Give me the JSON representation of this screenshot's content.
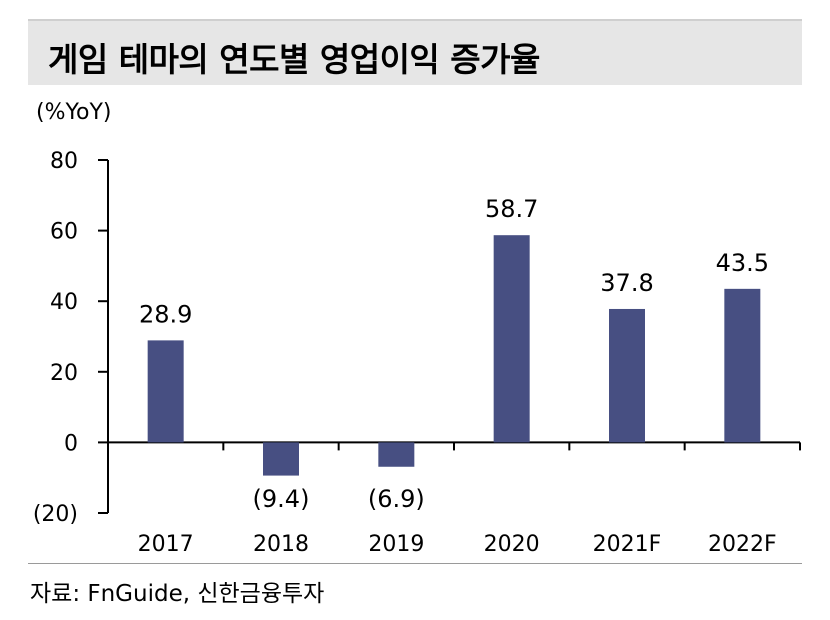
{
  "header": {
    "title": "게임 테마의 연도별 영업이익 증가율"
  },
  "unit_label": "(%YoY)",
  "source": "자료: FnGuide, 신한금융투자",
  "colors": {
    "bar": "#474f82",
    "axis": "#000000",
    "title_bg": "#e6e6e6"
  },
  "chart_data": {
    "type": "bar",
    "title": "게임 테마의 연도별 영업이익 증가율",
    "ylabel": "(%YoY)",
    "xlabel": "",
    "categories": [
      "2017",
      "2018",
      "2019",
      "2020",
      "2021F",
      "2022F"
    ],
    "values": [
      28.9,
      -9.4,
      -6.9,
      58.7,
      37.8,
      43.5
    ],
    "data_labels": [
      "28.9",
      "(9.4)",
      "(6.9)",
      "58.7",
      "37.8",
      "43.5"
    ],
    "ylim": [
      -20,
      80
    ],
    "yticks": [
      80,
      60,
      40,
      20,
      0,
      -20
    ],
    "ytick_labels": [
      "80",
      "60",
      "40",
      "20",
      "0",
      "(20)"
    ],
    "grid": false,
    "legend": "none"
  }
}
